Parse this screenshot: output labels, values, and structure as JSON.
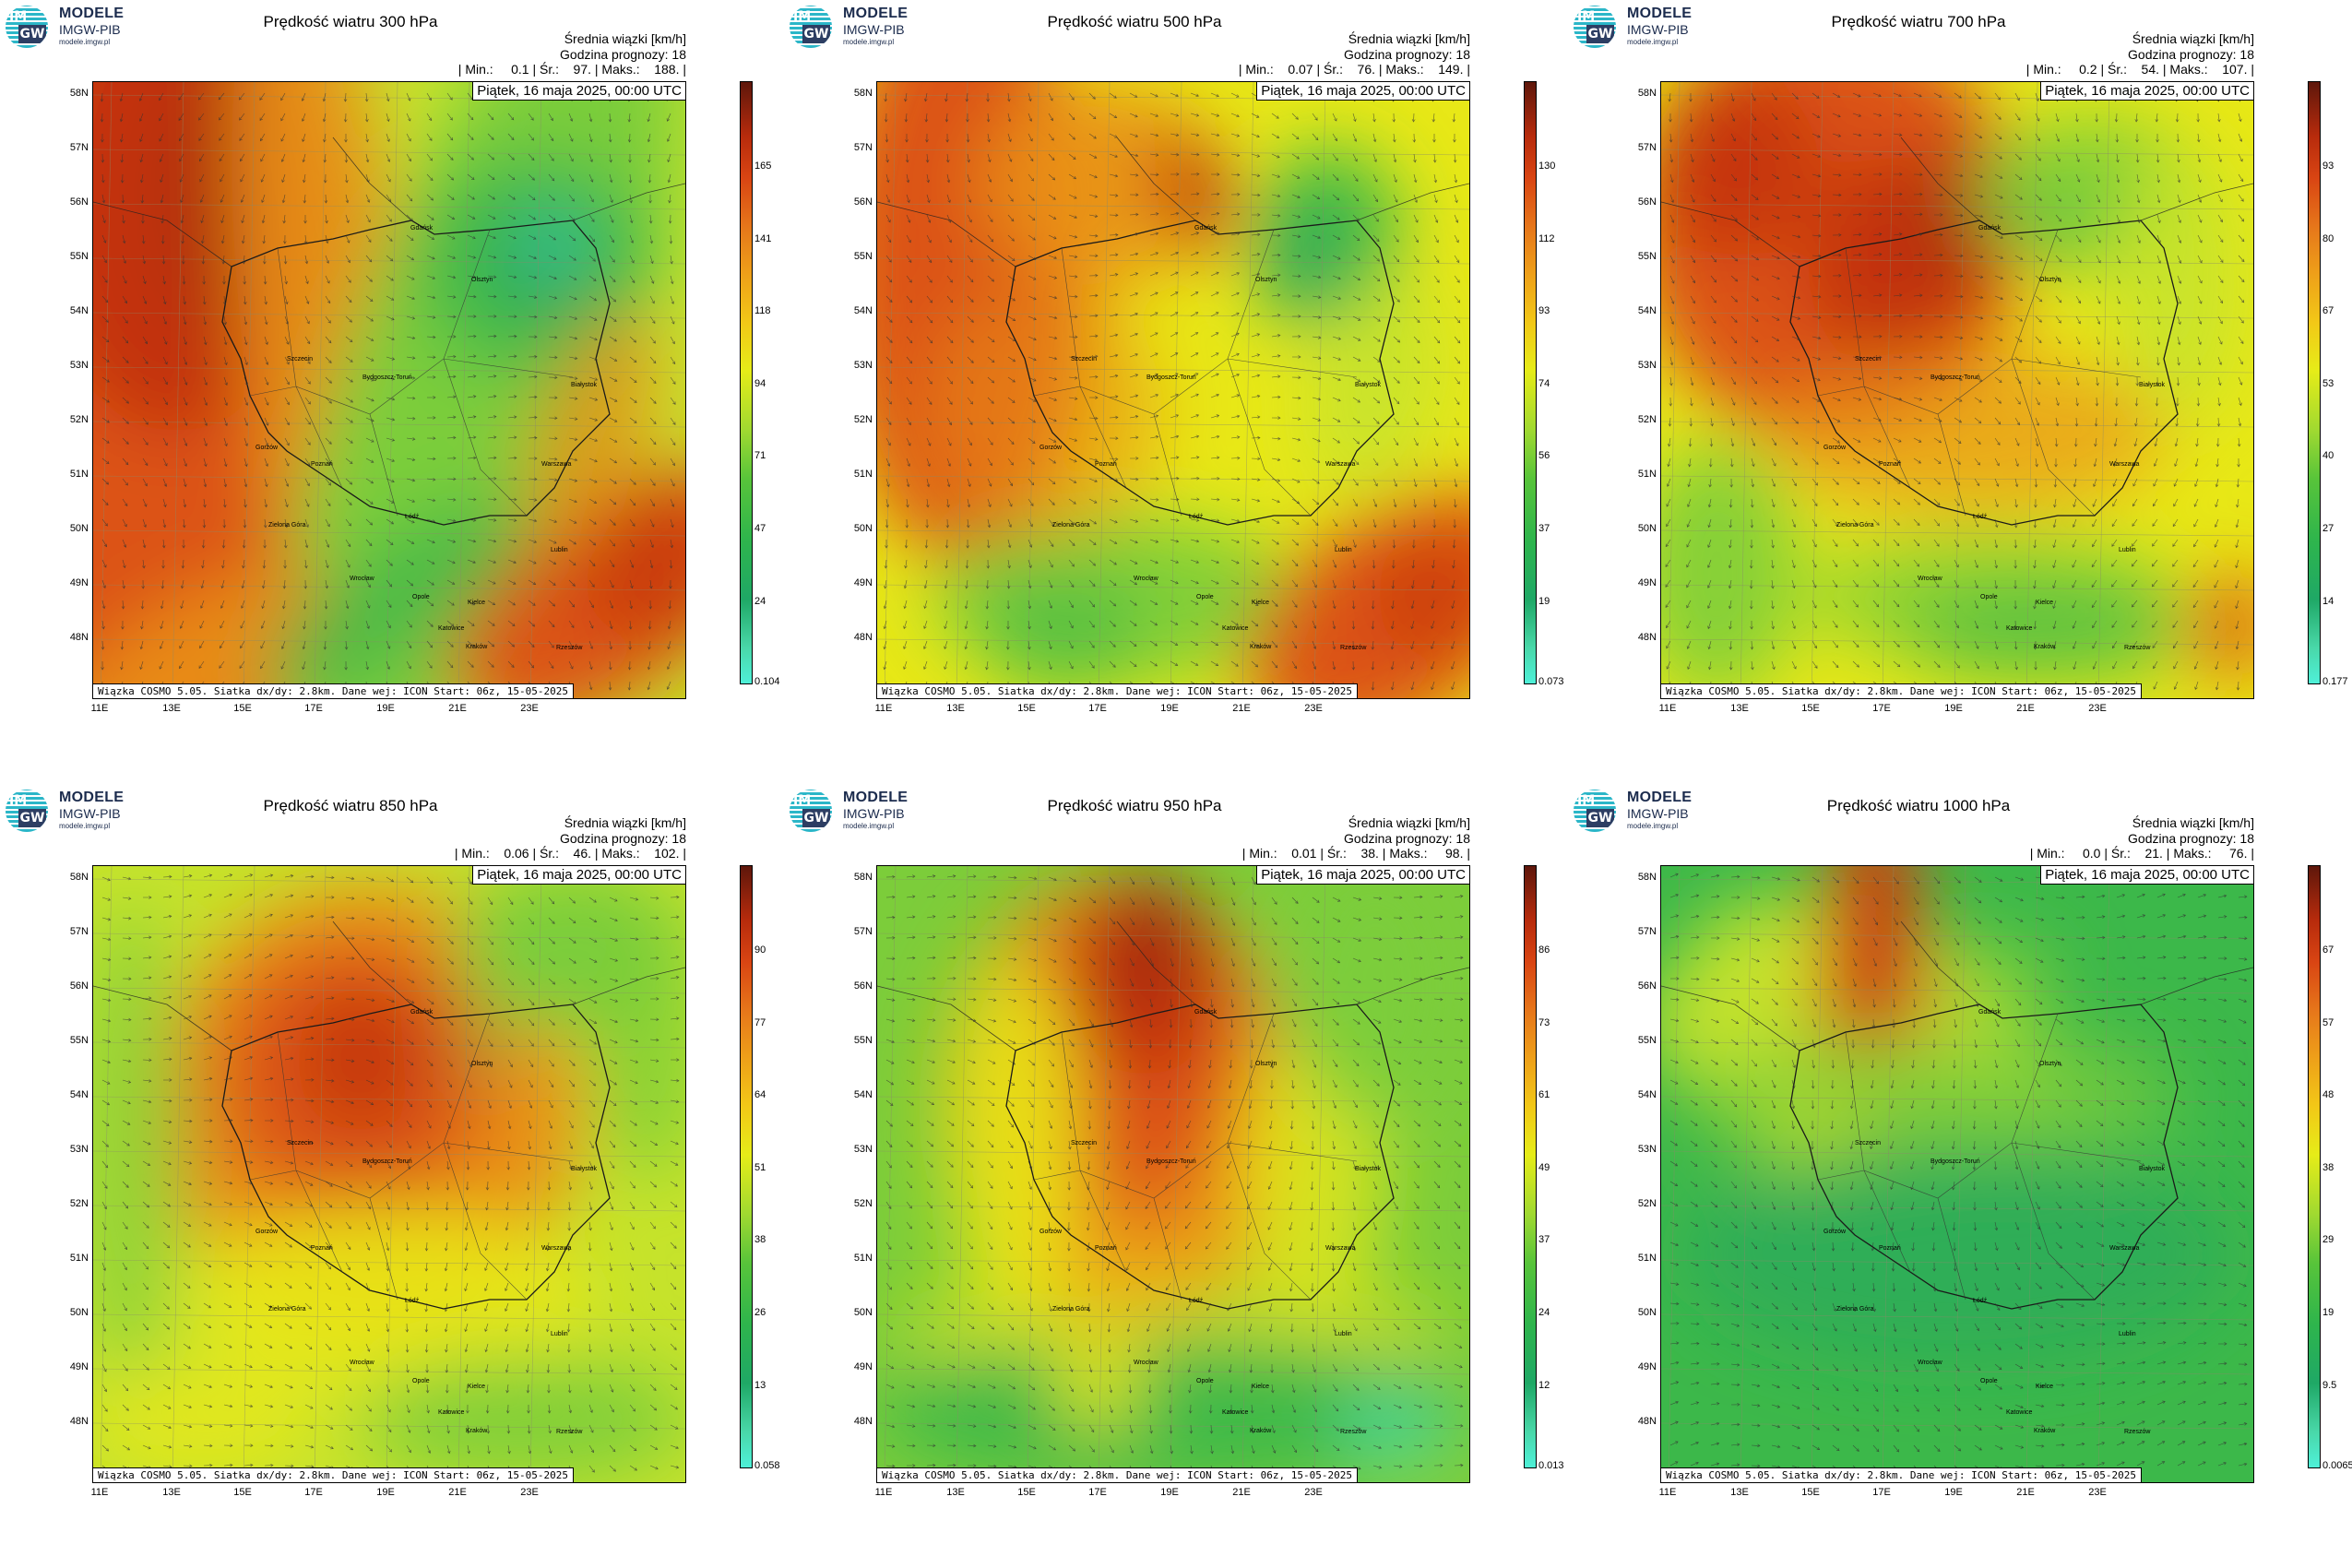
{
  "logo": {
    "line1": "MODELE",
    "line2": "IMGW-PIB",
    "line3": "modele.imgw.pl",
    "im": "IM",
    "gw": "GW"
  },
  "colors": {
    "logo_cyan": "#2bb6c8",
    "logo_navy": "#2d3e63"
  },
  "common": {
    "header1": "Średnia wiązki [km/h]",
    "header2": "Godzina prognozy: 18",
    "date": "Piątek, 16 maja 2025, 00:00 UTC",
    "footer": "Wiązka COSMO 5.05. Siatka dx/dy: 2.8km. Dane wej: ICON Start: 06z, 15-05-2025",
    "lat_labels": [
      "58N",
      "57N",
      "56N",
      "55N",
      "54N",
      "53N",
      "52N",
      "51N",
      "50N",
      "49N",
      "48N"
    ],
    "lon_labels": [
      "11E",
      "13E",
      "15E",
      "17E",
      "19E",
      "21E",
      "23E"
    ],
    "cities": [
      "Gdańsk",
      "Olsztyn",
      "Szczecin",
      "Bydgoszcz-Toruń",
      "Białystok",
      "Gorzów",
      "Poznań",
      "Warszawa",
      "Zielona Góra",
      "Łódź",
      "Lublin",
      "Wrocław",
      "Opole",
      "Kielce",
      "Katowice",
      "Kraków",
      "Rzeszów"
    ]
  },
  "panels": [
    {
      "title": "Prędkość wiatru 300 hPa",
      "stats": "| Min.:     0.1 | Śr.:    97. | Maks.:    188. |",
      "colorbar_ticks": [
        "165",
        "141",
        "118",
        "94",
        "71",
        "47",
        "24",
        "0.104"
      ]
    },
    {
      "title": "Prędkość wiatru 500 hPa",
      "stats": "| Min.:    0.07 | Śr.:    76. | Maks.:    149. |",
      "colorbar_ticks": [
        "130",
        "112",
        "93",
        "74",
        "56",
        "37",
        "19",
        "0.073"
      ]
    },
    {
      "title": "Prędkość wiatru 700 hPa",
      "stats": "| Min.:     0.2 | Śr.:    54. | Maks.:    107. |",
      "colorbar_ticks": [
        "93",
        "80",
        "67",
        "53",
        "40",
        "27",
        "14",
        "0.177"
      ]
    },
    {
      "title": "Prędkość wiatru 850 hPa",
      "stats": "| Min.:    0.06 | Śr.:    46. | Maks.:    102. |",
      "colorbar_ticks": [
        "90",
        "77",
        "64",
        "51",
        "38",
        "26",
        "13",
        "0.058"
      ]
    },
    {
      "title": "Prędkość wiatru 950 hPa",
      "stats": "| Min.:    0.01 | Śr.:    38. | Maks.:     98. |",
      "colorbar_ticks": [
        "86",
        "73",
        "61",
        "49",
        "37",
        "24",
        "12",
        "0.013"
      ]
    },
    {
      "title": "Prędkość wiatru 1000 hPa",
      "stats": "| Min.:     0.0 | Śr.:    21. | Maks.:     76. |",
      "colorbar_ticks": [
        "67",
        "57",
        "48",
        "38",
        "29",
        "19",
        "9.5",
        "0.0065"
      ]
    }
  ]
}
